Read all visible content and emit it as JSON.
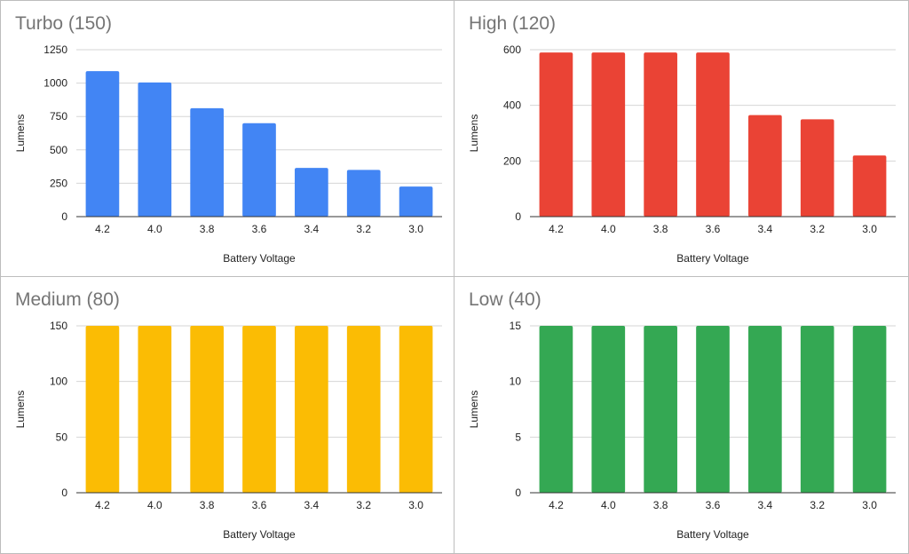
{
  "chart_data": [
    {
      "type": "bar",
      "title": "Turbo (150)",
      "xlabel": "Battery Voltage",
      "ylabel": "Lumens",
      "categories": [
        "4.2",
        "4.0",
        "3.8",
        "3.6",
        "3.4",
        "3.2",
        "3.0"
      ],
      "values": [
        1090,
        1005,
        812,
        700,
        365,
        350,
        225
      ],
      "ylim": [
        0,
        1250
      ],
      "yticks": [
        "0",
        "250",
        "500",
        "750",
        "1000",
        "1250"
      ],
      "color": "#4285f4",
      "grid": true
    },
    {
      "type": "bar",
      "title": "High (120)",
      "xlabel": "Battery Voltage",
      "ylabel": "Lumens",
      "categories": [
        "4.2",
        "4.0",
        "3.8",
        "3.6",
        "3.4",
        "3.2",
        "3.0"
      ],
      "values": [
        590,
        590,
        590,
        590,
        365,
        350,
        220
      ],
      "ylim": [
        0,
        600
      ],
      "yticks": [
        "0",
        "200",
        "400",
        "600"
      ],
      "color": "#ea4335",
      "grid": true
    },
    {
      "type": "bar",
      "title": "Medium (80)",
      "xlabel": "Battery Voltage",
      "ylabel": "Lumens",
      "categories": [
        "4.2",
        "4.0",
        "3.8",
        "3.6",
        "3.4",
        "3.2",
        "3.0"
      ],
      "values": [
        150,
        150,
        150,
        150,
        150,
        150,
        150
      ],
      "ylim": [
        0,
        150
      ],
      "yticks": [
        "0",
        "50",
        "100",
        "150"
      ],
      "color": "#fbbc04",
      "grid": true
    },
    {
      "type": "bar",
      "title": "Low (40)",
      "xlabel": "Battery Voltage",
      "ylabel": "Lumens",
      "categories": [
        "4.2",
        "4.0",
        "3.8",
        "3.6",
        "3.4",
        "3.2",
        "3.0"
      ],
      "values": [
        15,
        15,
        15,
        15,
        15,
        15,
        15
      ],
      "ylim": [
        0,
        15
      ],
      "yticks": [
        "0",
        "5",
        "10",
        "15"
      ],
      "color": "#34a853",
      "grid": true
    }
  ]
}
